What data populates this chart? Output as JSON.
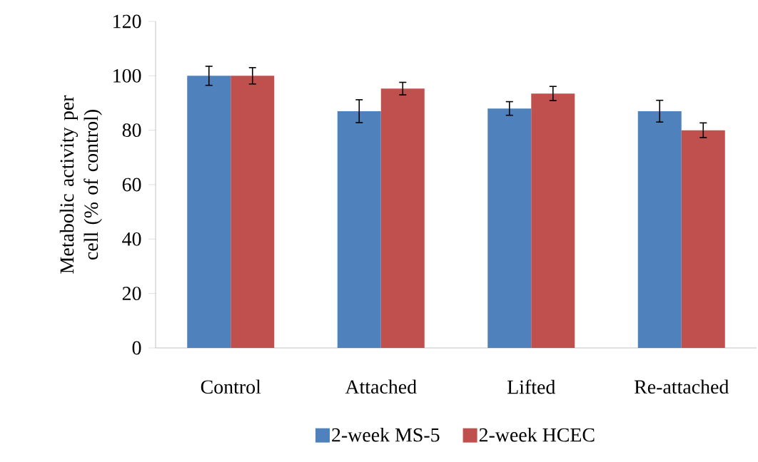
{
  "chart_data": {
    "type": "bar",
    "ylabel": "Metabolic activity per cell (% of control)",
    "categories": [
      "Control",
      "Attached",
      "Lifted",
      "Re-attached"
    ],
    "series": [
      {
        "name": "2-week MS-5",
        "color": "#4f81bd",
        "values": [
          100,
          87,
          88,
          87
        ],
        "errors": [
          3.5,
          4.2,
          2.5,
          4
        ]
      },
      {
        "name": "2-week HCEC",
        "color": "#c0504d",
        "values": [
          100,
          95.3,
          93.5,
          80
        ],
        "errors": [
          3,
          2.3,
          2.6,
          2.7
        ]
      }
    ],
    "ylim": [
      0,
      120
    ],
    "yticks": [
      0,
      20,
      40,
      60,
      80,
      100,
      120
    ],
    "grid": false,
    "legend": "bottom"
  }
}
